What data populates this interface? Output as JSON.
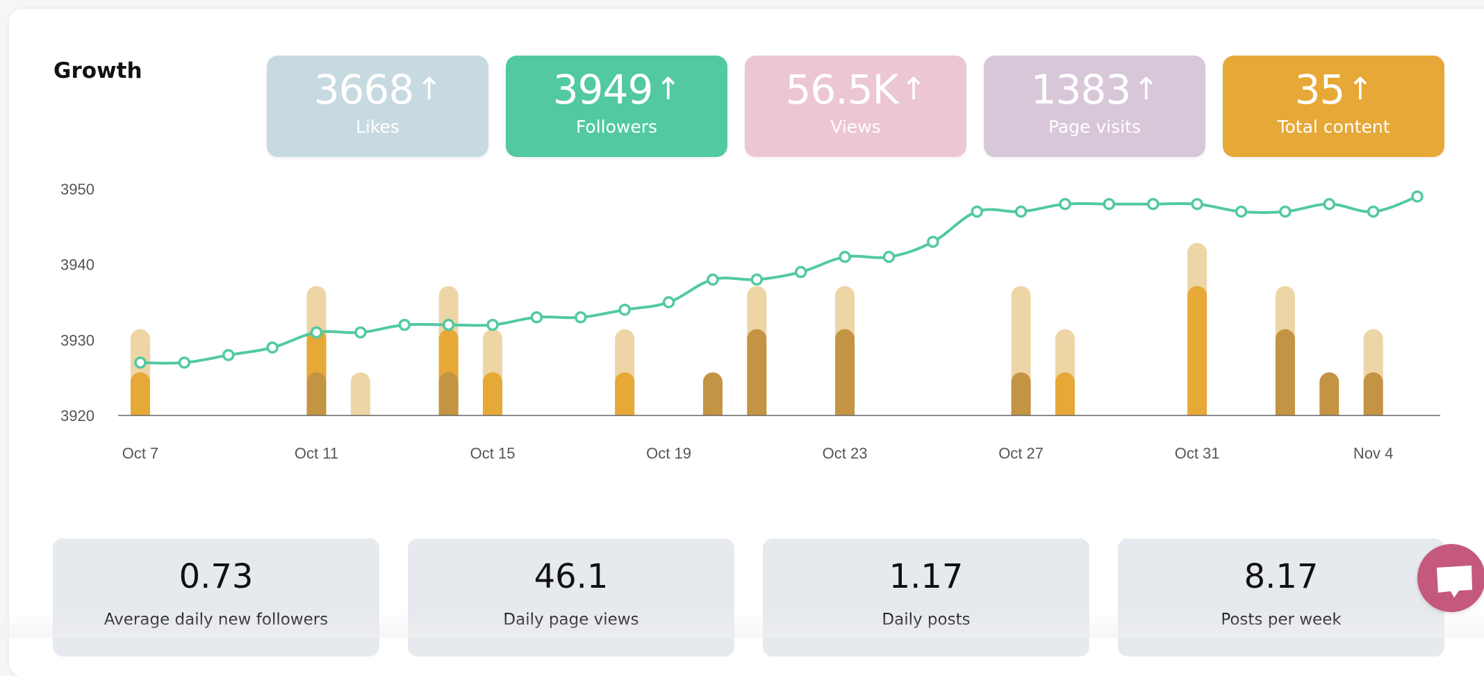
{
  "title": "Growth",
  "stats": [
    {
      "value": "3668",
      "label": "Likes",
      "color": "#c8dae1"
    },
    {
      "value": "3949",
      "label": "Followers",
      "color": "#52c9a0"
    },
    {
      "value": "56.5K",
      "label": "Views",
      "color": "#ecc6d3"
    },
    {
      "value": "1383",
      "label": "Page visits",
      "color": "#d8c7d8"
    },
    {
      "value": "35",
      "label": "Total content",
      "color": "#e6a836"
    }
  ],
  "arrow": "↑",
  "chart_data": {
    "type": "line+bar",
    "x": [
      "Oct 7",
      "Oct 8",
      "Oct 9",
      "Oct 10",
      "Oct 11",
      "Oct 12",
      "Oct 13",
      "Oct 14",
      "Oct 15",
      "Oct 16",
      "Oct 17",
      "Oct 18",
      "Oct 19",
      "Oct 20",
      "Oct 21",
      "Oct 22",
      "Oct 23",
      "Oct 24",
      "Oct 25",
      "Oct 26",
      "Oct 27",
      "Oct 28",
      "Oct 29",
      "Oct 30",
      "Oct 31",
      "Nov 1",
      "Nov 2",
      "Nov 3",
      "Nov 4",
      "Nov 5"
    ],
    "xticks": [
      "Oct 7",
      "Oct 11",
      "Oct 15",
      "Oct 19",
      "Oct 23",
      "Oct 27",
      "Oct 31",
      "Nov 4"
    ],
    "yticks": [
      3920,
      3930,
      3940,
      3950
    ],
    "ylim": [
      3920,
      3950
    ],
    "grid": false,
    "line": {
      "color": "#52c9a0",
      "values": [
        3927,
        3927,
        3928,
        3929,
        3931,
        3931,
        3932,
        3932,
        3932,
        3933,
        3933,
        3934,
        3935,
        3938,
        3938,
        3939,
        3941,
        3941,
        3943,
        3947,
        3947,
        3948,
        3948,
        3948,
        3948,
        3947,
        3947,
        3948,
        3947,
        3949
      ]
    },
    "bars_stacked": [
      {
        "color": "#c39443",
        "values": [
          0,
          0,
          0,
          0,
          1,
          0,
          0,
          1,
          0,
          0,
          0,
          0,
          0,
          1,
          2,
          0,
          2,
          0,
          0,
          0,
          1,
          0,
          0,
          0,
          0,
          0,
          2,
          1,
          1,
          0
        ]
      },
      {
        "color": "#e6a836",
        "values": [
          1,
          0,
          0,
          0,
          1,
          0,
          0,
          1,
          1,
          0,
          0,
          1,
          0,
          0,
          0,
          0,
          0,
          0,
          0,
          0,
          0,
          1,
          0,
          0,
          3,
          0,
          0,
          0,
          0,
          0
        ]
      },
      {
        "color": "#edd5a6",
        "values": [
          1,
          0,
          0,
          0,
          1,
          1,
          0,
          1,
          1,
          0,
          0,
          1,
          0,
          0,
          1,
          0,
          1,
          0,
          0,
          0,
          2,
          1,
          0,
          0,
          1,
          0,
          1,
          0,
          1,
          0
        ]
      }
    ]
  },
  "kpis": [
    {
      "value": "0.73",
      "label": "Average daily new followers"
    },
    {
      "value": "46.1",
      "label": "Daily page views"
    },
    {
      "value": "1.17",
      "label": "Daily posts"
    },
    {
      "value": "8.17",
      "label": "Posts per week"
    }
  ],
  "chat": {
    "icon": "chat-bubble-icon",
    "color": "#c4597d"
  }
}
